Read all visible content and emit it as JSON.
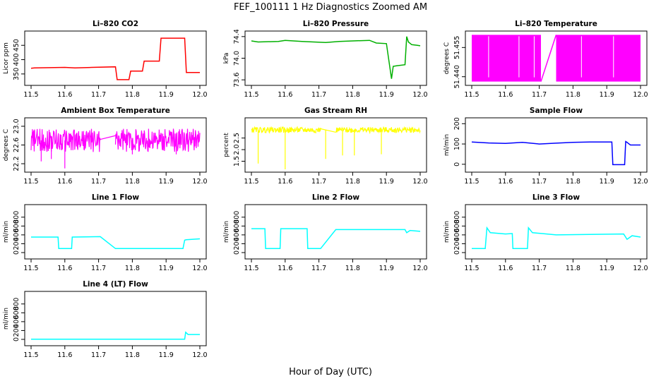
{
  "figure": {
    "title": "FEF_100111  1 Hz Diagnostics Zoomed AM",
    "xlabel": "Hour of Day (UTC)"
  },
  "chart_data": [
    {
      "type": "line",
      "title": "Li–820 CO2",
      "ylabel": "Licor ppm",
      "color": "#ff0000",
      "xlim": [
        11.5,
        12.0
      ],
      "ylim": [
        320,
        490
      ],
      "yticks": [
        350,
        400,
        450
      ],
      "ytick_labels": [
        "350",
        "400",
        "450"
      ],
      "xticks": [
        11.5,
        11.6,
        11.7,
        11.8,
        11.9,
        12.0
      ],
      "xtick_labels": [
        "11.5",
        "11.6",
        "11.7",
        "11.8",
        "11.9",
        "12.0"
      ],
      "x": [
        11.5,
        11.51,
        11.6,
        11.63,
        11.68,
        11.75,
        11.755,
        11.79,
        11.795,
        11.83,
        11.835,
        11.88,
        11.885,
        11.955,
        11.96,
        12.0
      ],
      "y": [
        370,
        371,
        373,
        371,
        373,
        375,
        330,
        330,
        360,
        360,
        395,
        395,
        475,
        475,
        355,
        355
      ]
    },
    {
      "type": "line",
      "title": "Li–820 Pressure",
      "ylabel": "kPa",
      "color": "#00b000",
      "xlim": [
        11.5,
        12.0
      ],
      "ylim": [
        73.55,
        74.45
      ],
      "yticks": [
        73.6,
        74.0,
        74.4
      ],
      "ytick_labels": [
        "73.6",
        "74.0",
        "74.4"
      ],
      "xticks": [
        11.5,
        11.6,
        11.7,
        11.8,
        11.9,
        12.0
      ],
      "xtick_labels": [
        "11.5",
        "11.6",
        "11.7",
        "11.8",
        "11.9",
        "12.0"
      ],
      "x": [
        11.5,
        11.52,
        11.58,
        11.6,
        11.65,
        11.72,
        11.76,
        11.8,
        11.85,
        11.87,
        11.9,
        11.915,
        11.92,
        11.93,
        11.955,
        11.96,
        11.965,
        11.975,
        11.99,
        12.0
      ],
      "y": [
        74.32,
        74.3,
        74.31,
        74.33,
        74.31,
        74.29,
        74.31,
        74.32,
        74.33,
        74.28,
        74.27,
        73.62,
        73.85,
        73.86,
        73.88,
        74.4,
        74.3,
        74.25,
        74.24,
        74.23
      ]
    },
    {
      "type": "area",
      "title": "Li–820 Temperature",
      "ylabel": "degrees C",
      "color": "#ff00ff",
      "xlim": [
        11.5,
        12.0
      ],
      "ylim": [
        51.437,
        51.462
      ],
      "yticks": [
        51.44,
        51.455
      ],
      "ytick_labels": [
        "51.440",
        "51.455"
      ],
      "xticks": [
        11.5,
        11.6,
        11.7,
        11.8,
        11.9,
        12.0
      ],
      "xtick_labels": [
        "11.5",
        "11.6",
        "11.7",
        "11.8",
        "11.9",
        "12.0"
      ],
      "band": [
        51.4375,
        51.4615
      ],
      "segments": [
        [
          11.5,
          11.705
        ],
        [
          11.75,
          12.0
        ]
      ],
      "gaps": [
        11.55,
        11.64,
        11.685,
        11.825,
        11.92
      ]
    },
    {
      "type": "line",
      "title": "Ambient Box Temperature",
      "ylabel": "degrees C",
      "color": "#ff00ff",
      "xlim": [
        11.5,
        12.0
      ],
      "ylim": [
        22.08,
        23.12
      ],
      "yticks": [
        22.2,
        22.6,
        23.0
      ],
      "ytick_labels": [
        "22.2",
        "22.6",
        "23.0"
      ],
      "xticks": [
        11.5,
        11.6,
        11.7,
        11.8,
        11.9,
        12.0
      ],
      "xtick_labels": [
        "11.5",
        "11.6",
        "11.7",
        "11.8",
        "11.9",
        "12.0"
      ],
      "noise": {
        "base": 22.7,
        "amp": 0.25,
        "segments": [
          [
            11.5,
            11.705
          ],
          [
            11.75,
            12.0
          ]
        ],
        "connector": [
          [
            11.705,
            22.72
          ],
          [
            11.75,
            22.8
          ]
        ],
        "spikes": [
          [
            11.6,
            22.1
          ],
          [
            11.56,
            22.3
          ],
          [
            11.53,
            22.25
          ],
          [
            11.8,
            22.4
          ],
          [
            11.93,
            22.4
          ]
        ]
      }
    },
    {
      "type": "line",
      "title": "Gas Stream RH",
      "ylabel": "percent",
      "color": "#ffff00",
      "xlim": [
        11.5,
        12.0
      ],
      "ylim": [
        1.15,
        3.25
      ],
      "yticks": [
        1.5,
        2.0,
        2.5
      ],
      "ytick_labels": [
        "1.5",
        "2.0",
        "2.5"
      ],
      "xticks": [
        11.5,
        11.6,
        11.7,
        11.8,
        11.9,
        12.0
      ],
      "xtick_labels": [
        "11.5",
        "11.6",
        "11.7",
        "11.8",
        "11.9",
        "12.0"
      ],
      "noise": {
        "base": 2.85,
        "amp": 0.12,
        "segments": [
          [
            11.5,
            11.705
          ],
          [
            11.75,
            12.0
          ]
        ],
        "connector": [
          [
            11.705,
            2.9
          ],
          [
            11.75,
            2.75
          ]
        ],
        "spikes": [
          [
            11.52,
            1.4
          ],
          [
            11.6,
            1.15
          ],
          [
            11.72,
            1.6
          ],
          [
            11.77,
            1.75
          ],
          [
            11.805,
            1.75
          ],
          [
            11.885,
            1.8
          ]
        ]
      }
    },
    {
      "type": "line",
      "title": "Sample Flow",
      "ylabel": "ml/min",
      "color": "#0000ff",
      "xlim": [
        11.5,
        12.0
      ],
      "ylim": [
        -25,
        215
      ],
      "yticks": [
        0,
        100,
        200
      ],
      "ytick_labels": [
        "0",
        "100",
        "200"
      ],
      "xticks": [
        11.5,
        11.6,
        11.7,
        11.8,
        11.9,
        12.0
      ],
      "xtick_labels": [
        "11.5",
        "11.6",
        "11.7",
        "11.8",
        "11.9",
        "12.0"
      ],
      "x": [
        11.5,
        11.55,
        11.6,
        11.65,
        11.7,
        11.75,
        11.8,
        11.85,
        11.915,
        11.918,
        11.953,
        11.956,
        11.96,
        11.97,
        12.0
      ],
      "y": [
        110,
        105,
        103,
        108,
        100,
        104,
        108,
        110,
        110,
        -2,
        -2,
        112,
        108,
        95,
        95
      ]
    },
    {
      "type": "line",
      "title": "Line 1 Flow",
      "ylabel": "ml/min",
      "color": "#00ffff",
      "xlim": [
        11.5,
        12.0
      ],
      "ylim": [
        -80,
        1020
      ],
      "yticks": [
        0,
        200,
        400,
        600,
        800
      ],
      "ytick_labels": [
        "0",
        "200",
        "400",
        "600",
        "800"
      ],
      "xticks": [
        11.5,
        11.6,
        11.7,
        11.8,
        11.9,
        12.0
      ],
      "xtick_labels": [
        "11.5",
        "11.6",
        "11.7",
        "11.8",
        "11.9",
        "12.0"
      ],
      "x": [
        11.5,
        11.58,
        11.582,
        11.62,
        11.622,
        11.705,
        11.75,
        11.95,
        11.955,
        11.96,
        12.0
      ],
      "y": [
        350,
        350,
        90,
        90,
        350,
        360,
        90,
        90,
        280,
        290,
        310
      ]
    },
    {
      "type": "line",
      "title": "Line 2 Flow",
      "ylabel": "ml/min",
      "color": "#00ffff",
      "xlim": [
        11.5,
        12.0
      ],
      "ylim": [
        -80,
        1020
      ],
      "yticks": [
        0,
        200,
        400,
        600,
        800
      ],
      "ytick_labels": [
        "0",
        "200",
        "400",
        "600",
        "800"
      ],
      "xticks": [
        11.5,
        11.6,
        11.7,
        11.8,
        11.9,
        12.0
      ],
      "xtick_labels": [
        "11.5",
        "11.6",
        "11.7",
        "11.8",
        "11.9",
        "12.0"
      ],
      "x": [
        11.5,
        11.54,
        11.542,
        11.585,
        11.587,
        11.665,
        11.667,
        11.705,
        11.75,
        11.955,
        11.96,
        11.97,
        12.0
      ],
      "y": [
        540,
        540,
        90,
        90,
        540,
        540,
        90,
        90,
        520,
        520,
        450,
        500,
        480
      ]
    },
    {
      "type": "line",
      "title": "Line 3 Flow",
      "ylabel": "ml/min",
      "color": "#00ffff",
      "xlim": [
        11.5,
        12.0
      ],
      "ylim": [
        -80,
        1020
      ],
      "yticks": [
        0,
        200,
        400,
        600,
        800
      ],
      "ytick_labels": [
        "0",
        "200",
        "400",
        "600",
        "800"
      ],
      "xticks": [
        11.5,
        11.6,
        11.7,
        11.8,
        11.9,
        12.0
      ],
      "xtick_labels": [
        "11.5",
        "11.6",
        "11.7",
        "11.8",
        "11.9",
        "12.0"
      ],
      "x": [
        11.5,
        11.54,
        11.545,
        11.555,
        11.6,
        11.62,
        11.622,
        11.665,
        11.668,
        11.68,
        11.75,
        11.95,
        11.96,
        11.975,
        12.0
      ],
      "y": [
        90,
        90,
        560,
        450,
        420,
        430,
        90,
        90,
        560,
        450,
        400,
        420,
        300,
        380,
        350
      ]
    },
    {
      "type": "line",
      "title": "Line 4 (LT) Flow",
      "ylabel": "ml/min",
      "color": "#00ffff",
      "xlim": [
        11.5,
        12.0
      ],
      "ylim": [
        -80,
        1020
      ],
      "yticks": [
        0,
        200,
        400,
        600,
        800
      ],
      "ytick_labels": [
        "0",
        "200",
        "400",
        "600",
        "800"
      ],
      "xticks": [
        11.5,
        11.6,
        11.7,
        11.8,
        11.9,
        12.0
      ],
      "xtick_labels": [
        "11.5",
        "11.6",
        "11.7",
        "11.8",
        "11.9",
        "12.0"
      ],
      "x": [
        11.5,
        11.955,
        11.958,
        11.965,
        12.0
      ],
      "y": [
        5,
        5,
        160,
        110,
        110
      ]
    }
  ]
}
